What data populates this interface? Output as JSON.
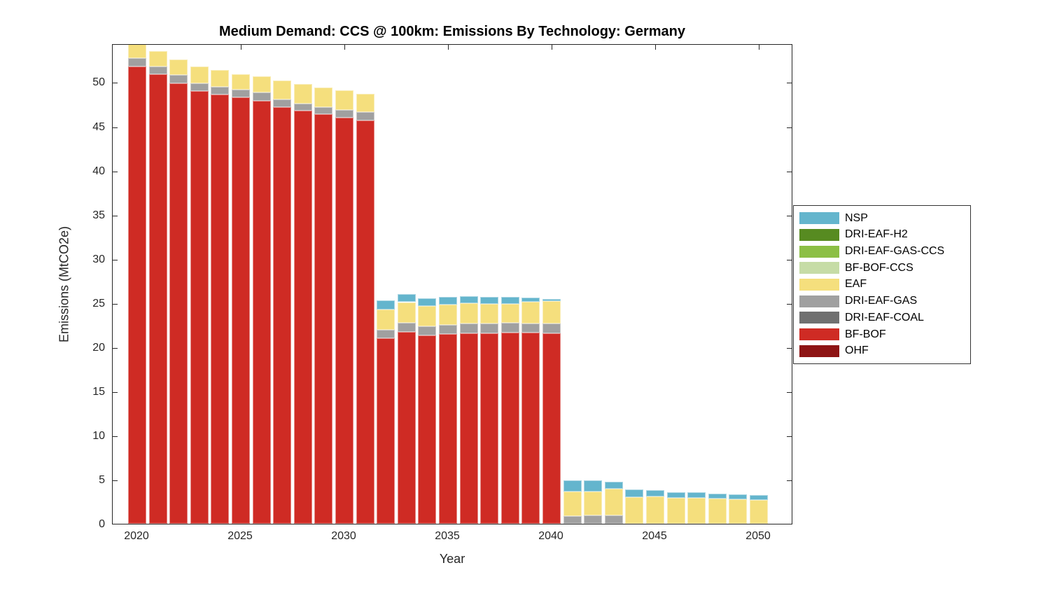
{
  "figure": {
    "background": "#ffffff"
  },
  "chart_data": {
    "type": "bar",
    "stacked": true,
    "title": "Medium Demand: CCS @ 100km: Emissions By Technology: Germany",
    "xlabel": "Year",
    "ylabel": "Emissions (MtCO2e)",
    "grid": false,
    "legend_position": "right-outside",
    "ylim": [
      0,
      54.4
    ],
    "yticks": [
      0,
      5,
      10,
      15,
      20,
      25,
      30,
      35,
      40,
      45,
      50
    ],
    "xticks": [
      2020,
      2025,
      2030,
      2035,
      2040,
      2045,
      2050
    ],
    "x": [
      2020,
      2021,
      2022,
      2023,
      2024,
      2025,
      2026,
      2027,
      2028,
      2029,
      2030,
      2031,
      2032,
      2033,
      2034,
      2035,
      2036,
      2037,
      2038,
      2039,
      2040,
      2041,
      2042,
      2043,
      2044,
      2045,
      2046,
      2047,
      2048,
      2049,
      2050
    ],
    "series": [
      {
        "name": "OHF",
        "color": "#8E1414",
        "values": [
          0,
          0,
          0,
          0,
          0,
          0,
          0,
          0,
          0,
          0,
          0,
          0,
          0,
          0,
          0,
          0,
          0,
          0,
          0,
          0,
          0,
          0,
          0,
          0,
          0,
          0,
          0,
          0,
          0,
          0,
          0
        ]
      },
      {
        "name": "BF-BOF",
        "color": "#CF2B24",
        "values": [
          51.8,
          50.9,
          49.9,
          49.0,
          48.65,
          48.3,
          47.9,
          47.2,
          46.75,
          46.4,
          46.0,
          45.7,
          21.0,
          21.7,
          21.3,
          21.5,
          21.6,
          21.6,
          21.65,
          21.65,
          21.6,
          0,
          0,
          0,
          0,
          0,
          0,
          0,
          0,
          0,
          0
        ]
      },
      {
        "name": "DRI-EAF-COAL",
        "color": "#707070",
        "values": [
          0,
          0,
          0,
          0,
          0,
          0,
          0,
          0,
          0,
          0,
          0,
          0,
          0,
          0,
          0,
          0,
          0,
          0,
          0,
          0,
          0,
          0,
          0,
          0,
          0,
          0,
          0,
          0,
          0,
          0,
          0
        ]
      },
      {
        "name": "DRI-EAF-GAS",
        "color": "#A0A0A0",
        "values": [
          0.95,
          0.85,
          0.9,
          0.85,
          0.85,
          0.9,
          0.95,
          0.85,
          0.85,
          0.8,
          0.9,
          0.9,
          1.0,
          1.05,
          1.05,
          1.05,
          1.05,
          1.1,
          1.1,
          1.0,
          1.05,
          0.9,
          0.93,
          0.98,
          0,
          0,
          0,
          0,
          0,
          0,
          0
        ]
      },
      {
        "name": "EAF",
        "color": "#F5DF7D",
        "values": [
          1.75,
          1.75,
          1.75,
          1.9,
          1.9,
          1.7,
          1.8,
          2.15,
          2.2,
          2.2,
          2.2,
          2.1,
          2.3,
          2.35,
          2.3,
          2.3,
          2.3,
          2.2,
          2.15,
          2.5,
          2.6,
          2.77,
          2.74,
          2.96,
          3.04,
          3.09,
          2.96,
          2.91,
          2.83,
          2.75,
          2.69
        ]
      },
      {
        "name": "BF-BOF-CCS",
        "color": "#C6DCA6",
        "values": [
          0,
          0,
          0,
          0,
          0,
          0,
          0,
          0,
          0,
          0,
          0,
          0,
          0,
          0,
          0,
          0,
          0,
          0,
          0,
          0,
          0,
          0,
          0,
          0,
          0,
          0,
          0,
          0,
          0,
          0,
          0
        ]
      },
      {
        "name": "DRI-EAF-GAS-CCS",
        "color": "#8CBF45",
        "values": [
          0,
          0,
          0,
          0,
          0,
          0,
          0,
          0,
          0,
          0,
          0,
          0,
          0,
          0,
          0,
          0,
          0,
          0,
          0,
          0,
          0,
          0,
          0,
          0,
          0,
          0,
          0,
          0,
          0,
          0,
          0
        ]
      },
      {
        "name": "DRI-EAF-H2",
        "color": "#578B21",
        "values": [
          0,
          0,
          0,
          0,
          0,
          0,
          0,
          0,
          0,
          0,
          0,
          0,
          0,
          0,
          0,
          0,
          0,
          0,
          0,
          0,
          0,
          0,
          0,
          0,
          0,
          0,
          0,
          0,
          0,
          0,
          0
        ]
      },
      {
        "name": "NSP",
        "color": "#64B5CD",
        "values": [
          0,
          0,
          0,
          0,
          0,
          0,
          0,
          0,
          0,
          0,
          0,
          0,
          1.0,
          0.9,
          0.9,
          0.85,
          0.8,
          0.8,
          0.8,
          0.5,
          0.2,
          1.27,
          1.27,
          0.79,
          0.84,
          0.74,
          0.61,
          0.63,
          0.58,
          0.6,
          0.58
        ]
      }
    ]
  },
  "legend": {
    "items": [
      {
        "label": "NSP",
        "color": "#64B5CD"
      },
      {
        "label": "DRI-EAF-H2",
        "color": "#578B21"
      },
      {
        "label": "DRI-EAF-GAS-CCS",
        "color": "#8CBF45"
      },
      {
        "label": "BF-BOF-CCS",
        "color": "#C6DCA6"
      },
      {
        "label": "EAF",
        "color": "#F5DF7D"
      },
      {
        "label": "DRI-EAF-GAS",
        "color": "#A0A0A0"
      },
      {
        "label": "DRI-EAF-COAL",
        "color": "#707070"
      },
      {
        "label": "BF-BOF",
        "color": "#CF2B24"
      },
      {
        "label": "OHF",
        "color": "#8E1414"
      }
    ]
  }
}
